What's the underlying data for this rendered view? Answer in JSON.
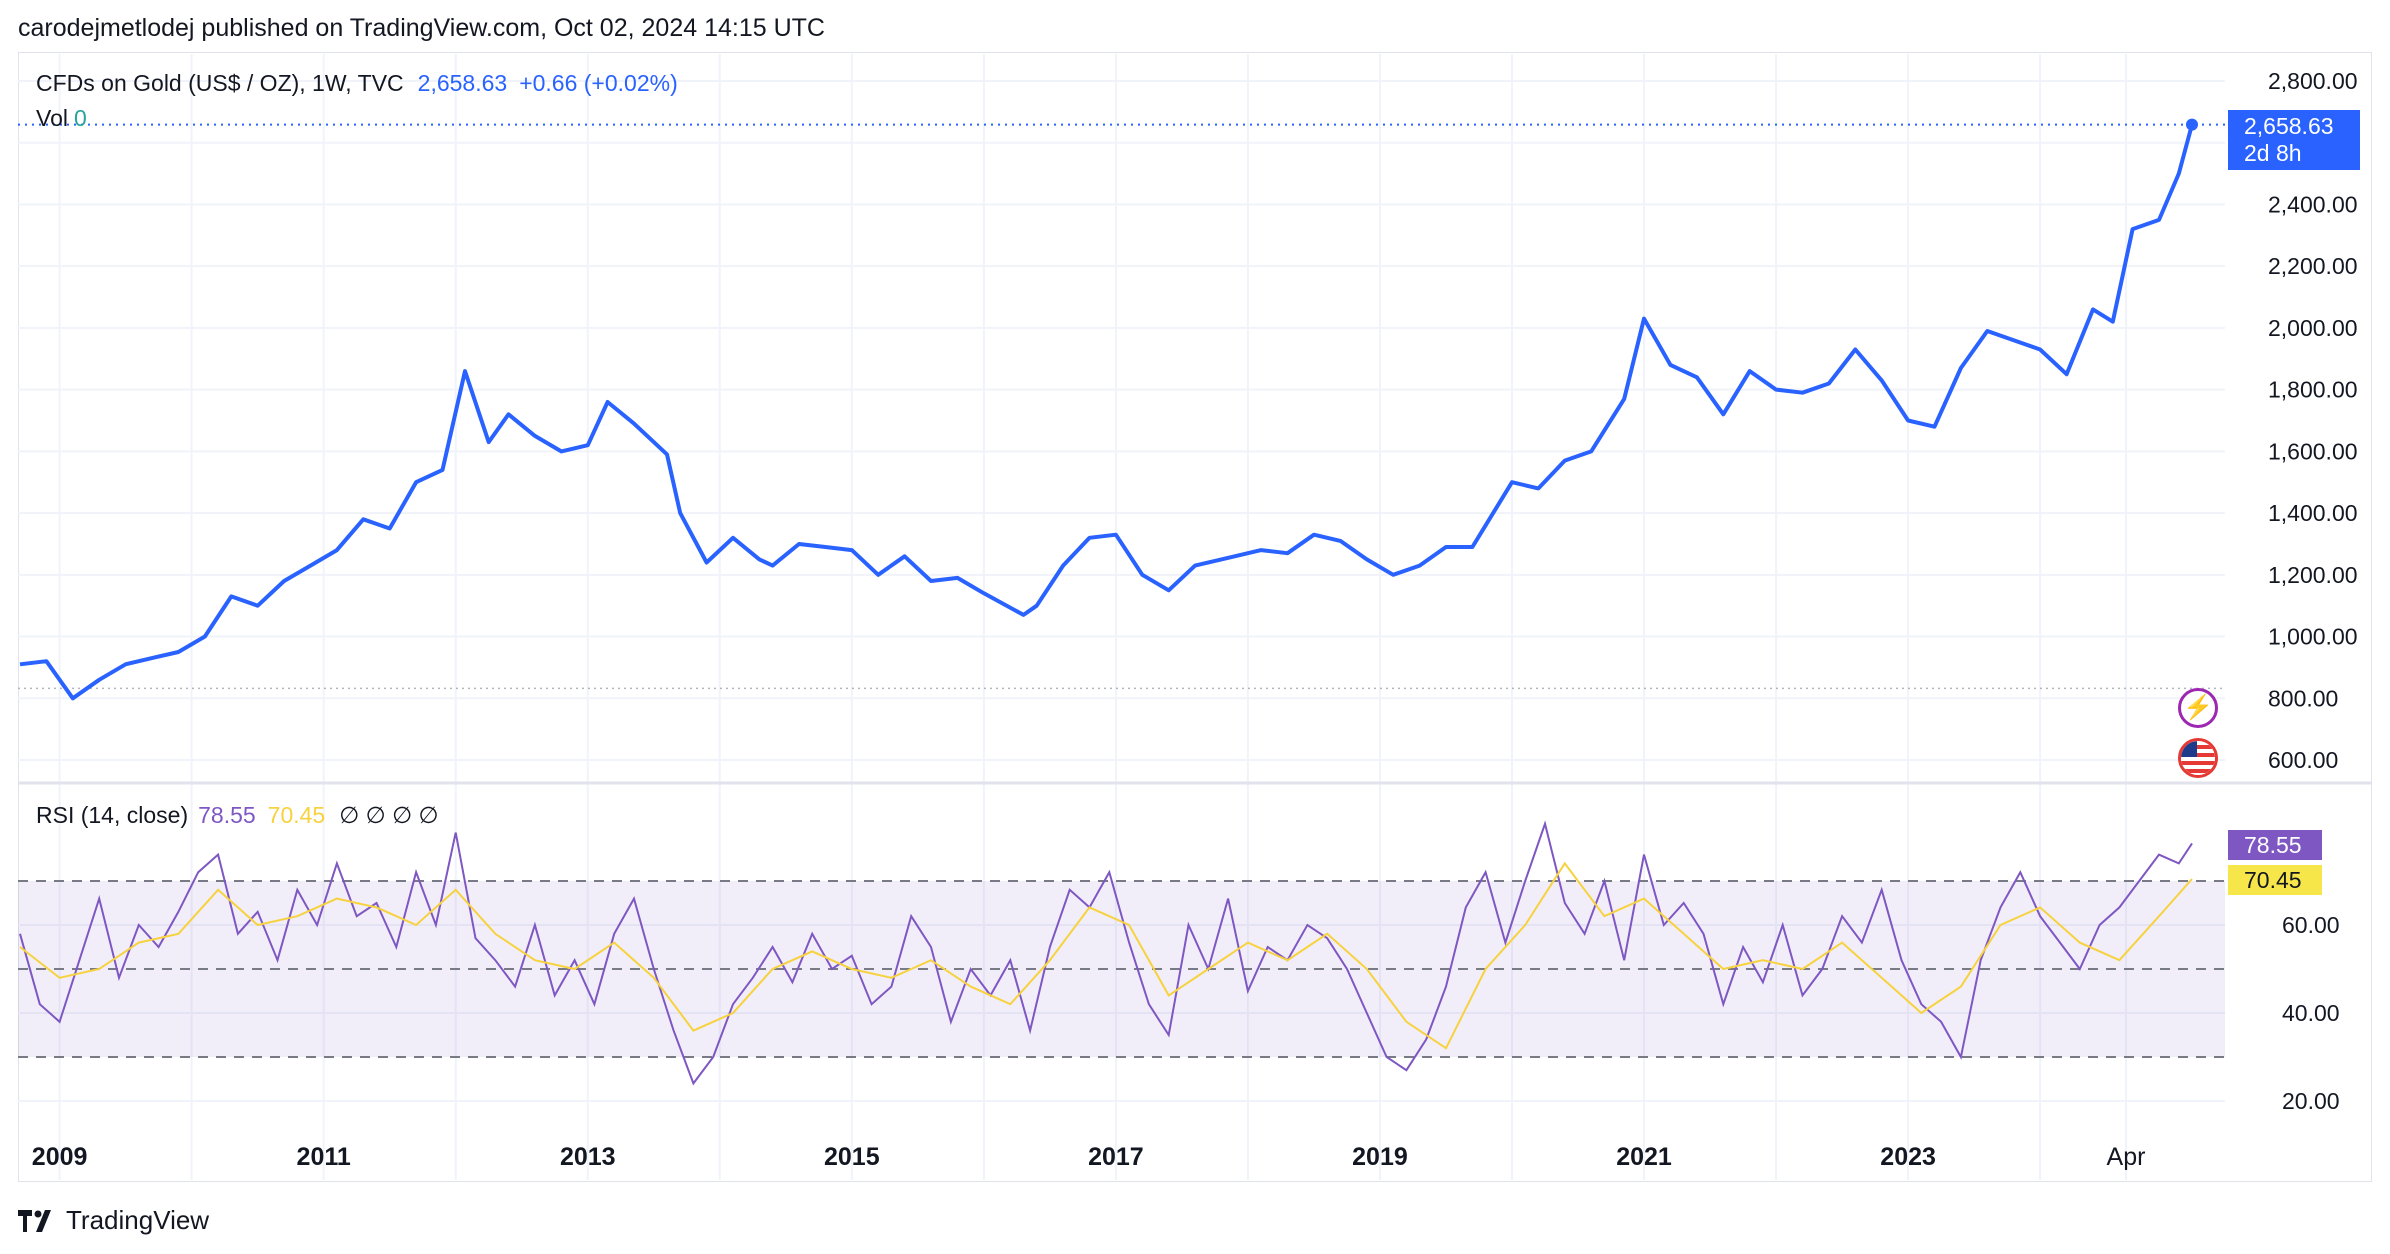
{
  "publisher_line": "carodejmetlodej published on TradingView.com, Oct 02, 2024 14:15 UTC",
  "legend": {
    "symbol": "CFDs on Gold (US$ / OZ), 1W, TVC",
    "last": "2,658.63",
    "change": "+0.66 (+0.02%)",
    "vol_label": "Vol",
    "vol_value": "0"
  },
  "price_tag": {
    "price": "2,658.63",
    "countdown": "2d 8h"
  },
  "rsi_legend": {
    "label": "RSI (14, close)",
    "rsi": "78.55",
    "ma": "70.45",
    "na": "∅ ∅ ∅ ∅"
  },
  "rsi_tags": {
    "rsi": "78.55",
    "ma": "70.45"
  },
  "footer": {
    "brand": "TradingView"
  },
  "colors": {
    "price_line": "#2962ff",
    "rsi_line": "#7e57c2",
    "rsi_ma": "#f7d23f",
    "rsi_band": "#7e57c2"
  },
  "chart_data": [
    {
      "type": "line",
      "x_unit": "year",
      "x_ticks": [
        "2009",
        "2011",
        "2013",
        "2015",
        "2017",
        "2019",
        "2021",
        "2023",
        "Apr"
      ],
      "y_ticks": [
        "600.00",
        "800.00",
        "1,000.00",
        "1,200.00",
        "1,400.00",
        "1,600.00",
        "1,800.00",
        "2,000.00",
        "2,200.00",
        "2,400.00",
        "2,800.00"
      ],
      "ylim": [
        570,
        2830
      ],
      "xlim": [
        2008.3,
        2025.0
      ],
      "series": [
        {
          "x": [
            2008.3,
            2008.5,
            2008.7,
            2008.9,
            2009.1,
            2009.3,
            2009.5,
            2009.7,
            2009.9,
            2010.1,
            2010.3,
            2010.5,
            2010.7,
            2010.9,
            2011.1,
            2011.3,
            2011.5,
            2011.67,
            2011.85,
            2012.0,
            2012.2,
            2012.4,
            2012.6,
            2012.75,
            2012.95,
            2013.2,
            2013.3,
            2013.5,
            2013.7,
            2013.9,
            2014.0,
            2014.2,
            2014.4,
            2014.6,
            2014.8,
            2015.0,
            2015.2,
            2015.4,
            2015.6,
            2015.9,
            2016.0,
            2016.2,
            2016.4,
            2016.6,
            2016.8,
            2017.0,
            2017.2,
            2017.5,
            2017.7,
            2017.9,
            2018.1,
            2018.3,
            2018.5,
            2018.7,
            2018.9,
            2019.1,
            2019.3,
            2019.6,
            2019.8,
            2020.0,
            2020.2,
            2020.45,
            2020.6,
            2020.8,
            2021.0,
            2021.2,
            2021.4,
            2021.6,
            2021.8,
            2022.0,
            2022.2,
            2022.4,
            2022.6,
            2022.8,
            2023.0,
            2023.2,
            2023.4,
            2023.6,
            2023.8,
            2024.0,
            2024.15,
            2024.3,
            2024.5,
            2024.65,
            2024.75
          ],
          "y": [
            910,
            920,
            800,
            860,
            910,
            930,
            950,
            1000,
            1130,
            1100,
            1180,
            1230,
            1280,
            1380,
            1350,
            1500,
            1540,
            1860,
            1630,
            1720,
            1650,
            1600,
            1620,
            1760,
            1690,
            1590,
            1400,
            1240,
            1320,
            1250,
            1230,
            1300,
            1290,
            1280,
            1200,
            1260,
            1180,
            1190,
            1140,
            1070,
            1100,
            1230,
            1320,
            1330,
            1200,
            1150,
            1230,
            1260,
            1280,
            1270,
            1330,
            1310,
            1250,
            1200,
            1230,
            1290,
            1290,
            1500,
            1480,
            1570,
            1600,
            1770,
            2030,
            1880,
            1840,
            1720,
            1860,
            1800,
            1790,
            1820,
            1930,
            1830,
            1700,
            1680,
            1870,
            1990,
            1960,
            1930,
            1850,
            2060,
            2020,
            2320,
            2350,
            2500,
            2658.63
          ]
        }
      ]
    },
    {
      "type": "line",
      "title": "RSI (14, close)",
      "y_ticks": [
        "20.00",
        "40.00",
        "60.00"
      ],
      "ylim": [
        15,
        83
      ],
      "levels": [
        30,
        50,
        70
      ],
      "xlim": [
        2008.3,
        2025.0
      ],
      "series": [
        {
          "name": "RSI",
          "x": [
            2008.3,
            2008.45,
            2008.6,
            2008.75,
            2008.9,
            2009.05,
            2009.2,
            2009.35,
            2009.5,
            2009.65,
            2009.8,
            2009.95,
            2010.1,
            2010.25,
            2010.4,
            2010.55,
            2010.7,
            2010.85,
            2011.0,
            2011.15,
            2011.3,
            2011.45,
            2011.6,
            2011.75,
            2011.9,
            2012.05,
            2012.2,
            2012.35,
            2012.5,
            2012.65,
            2012.8,
            2012.95,
            2013.1,
            2013.25,
            2013.4,
            2013.55,
            2013.7,
            2013.85,
            2014.0,
            2014.15,
            2014.3,
            2014.45,
            2014.6,
            2014.75,
            2014.9,
            2015.05,
            2015.2,
            2015.35,
            2015.5,
            2015.65,
            2015.8,
            2015.95,
            2016.1,
            2016.25,
            2016.4,
            2016.55,
            2016.7,
            2016.85,
            2017.0,
            2017.15,
            2017.3,
            2017.45,
            2017.6,
            2017.75,
            2017.9,
            2018.05,
            2018.2,
            2018.35,
            2018.5,
            2018.65,
            2018.8,
            2018.95,
            2019.1,
            2019.25,
            2019.4,
            2019.55,
            2019.7,
            2019.85,
            2020.0,
            2020.15,
            2020.3,
            2020.45,
            2020.6,
            2020.75,
            2020.9,
            2021.05,
            2021.2,
            2021.35,
            2021.5,
            2021.65,
            2021.8,
            2021.95,
            2022.1,
            2022.25,
            2022.4,
            2022.55,
            2022.7,
            2022.85,
            2023.0,
            2023.15,
            2023.3,
            2023.45,
            2023.6,
            2023.75,
            2023.9,
            2024.05,
            2024.2,
            2024.35,
            2024.5,
            2024.65,
            2024.75
          ],
          "y": [
            58,
            42,
            38,
            52,
            66,
            48,
            60,
            55,
            63,
            72,
            76,
            58,
            63,
            52,
            68,
            60,
            74,
            62,
            65,
            55,
            72,
            60,
            81,
            57,
            52,
            46,
            60,
            44,
            52,
            42,
            58,
            66,
            50,
            36,
            24,
            30,
            42,
            48,
            55,
            47,
            58,
            50,
            53,
            42,
            46,
            62,
            55,
            38,
            50,
            44,
            52,
            36,
            55,
            68,
            64,
            72,
            56,
            42,
            35,
            60,
            50,
            66,
            45,
            55,
            52,
            60,
            57,
            50,
            40,
            30,
            27,
            34,
            46,
            64,
            72,
            56,
            70,
            83,
            65,
            58,
            70,
            52,
            76,
            60,
            65,
            58,
            42,
            55,
            47,
            60,
            44,
            50,
            62,
            56,
            68,
            52,
            42,
            38,
            30,
            52,
            64,
            72,
            62,
            56,
            50,
            60,
            64,
            70,
            76,
            74,
            78.55
          ]
        },
        {
          "name": "RSI-based MA",
          "x": [
            2008.3,
            2008.6,
            2008.9,
            2009.2,
            2009.5,
            2009.8,
            2010.1,
            2010.4,
            2010.7,
            2011.0,
            2011.3,
            2011.6,
            2011.9,
            2012.2,
            2012.5,
            2012.8,
            2013.1,
            2013.4,
            2013.7,
            2014.0,
            2014.3,
            2014.6,
            2014.9,
            2015.2,
            2015.5,
            2015.8,
            2016.1,
            2016.4,
            2016.7,
            2017.0,
            2017.3,
            2017.6,
            2017.9,
            2018.2,
            2018.5,
            2018.8,
            2019.1,
            2019.4,
            2019.7,
            2020.0,
            2020.3,
            2020.6,
            2020.9,
            2021.2,
            2021.5,
            2021.8,
            2022.1,
            2022.4,
            2022.7,
            2023.0,
            2023.3,
            2023.6,
            2023.9,
            2024.2,
            2024.5,
            2024.75
          ],
          "y": [
            55,
            48,
            50,
            56,
            58,
            68,
            60,
            62,
            66,
            64,
            60,
            68,
            58,
            52,
            50,
            56,
            48,
            36,
            40,
            50,
            54,
            50,
            48,
            52,
            46,
            42,
            52,
            64,
            60,
            44,
            50,
            56,
            52,
            58,
            50,
            38,
            32,
            50,
            60,
            74,
            62,
            66,
            58,
            50,
            52,
            50,
            56,
            48,
            40,
            46,
            60,
            64,
            56,
            52,
            62,
            70.45
          ]
        }
      ]
    }
  ]
}
